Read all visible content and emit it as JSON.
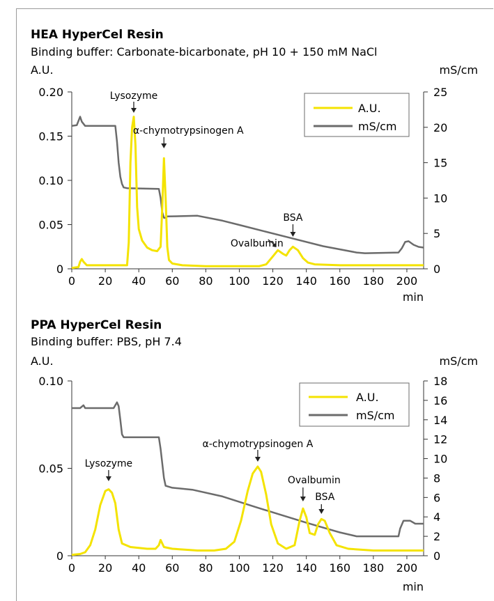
{
  "chart_data": [
    {
      "type": "line",
      "title": "HEA HyperCel Resin",
      "subtitle": "Binding buffer: Carbonate-bicarbonate, pH 10 + 150 mM NaCl",
      "xlabel": "min",
      "ylabel_left": "A.U.",
      "ylabel_right": "mS/cm",
      "xlim": [
        0,
        210
      ],
      "ylim_left": [
        0,
        0.2
      ],
      "ylim_right": [
        0,
        25
      ],
      "x_ticks": [
        "0",
        "20",
        "40",
        "60",
        "80",
        "100",
        "120",
        "140",
        "160",
        "180",
        "200"
      ],
      "y_left_ticks": [
        "0",
        "0.05",
        "0.10",
        "0.15",
        "0.20"
      ],
      "y_right_ticks": [
        "0",
        "5",
        "10",
        "15",
        "20",
        "25"
      ],
      "legend_position": "top-right",
      "series": [
        {
          "name": "A.U.",
          "axis": "left",
          "color": "#f4e300",
          "points": [
            [
              0,
              0.001
            ],
            [
              4,
              0.002
            ],
            [
              5,
              0.008
            ],
            [
              6,
              0.011
            ],
            [
              7,
              0.008
            ],
            [
              9,
              0.004
            ],
            [
              14,
              0.004
            ],
            [
              22,
              0.004
            ],
            [
              30,
              0.004
            ],
            [
              33,
              0.004
            ],
            [
              34,
              0.03
            ],
            [
              35,
              0.12
            ],
            [
              36,
              0.16
            ],
            [
              37,
              0.172
            ],
            [
              38,
              0.14
            ],
            [
              39,
              0.07
            ],
            [
              40,
              0.045
            ],
            [
              42,
              0.032
            ],
            [
              45,
              0.024
            ],
            [
              48,
              0.021
            ],
            [
              51,
              0.02
            ],
            [
              53,
              0.025
            ],
            [
              54,
              0.07
            ],
            [
              55,
              0.125
            ],
            [
              56,
              0.08
            ],
            [
              57,
              0.025
            ],
            [
              58,
              0.01
            ],
            [
              60,
              0.006
            ],
            [
              66,
              0.004
            ],
            [
              80,
              0.003
            ],
            [
              100,
              0.003
            ],
            [
              112,
              0.003
            ],
            [
              116,
              0.005
            ],
            [
              120,
              0.014
            ],
            [
              123,
              0.021
            ],
            [
              126,
              0.017
            ],
            [
              128,
              0.015
            ],
            [
              130,
              0.021
            ],
            [
              132,
              0.025
            ],
            [
              135,
              0.021
            ],
            [
              138,
              0.012
            ],
            [
              141,
              0.007
            ],
            [
              145,
              0.005
            ],
            [
              160,
              0.004
            ],
            [
              185,
              0.004
            ],
            [
              200,
              0.004
            ],
            [
              210,
              0.004
            ]
          ]
        },
        {
          "name": "mS/cm",
          "axis": "right",
          "color": "#6b6b6b",
          "points": [
            [
              0,
              20.2
            ],
            [
              3,
              20.3
            ],
            [
              5,
              21.5
            ],
            [
              6,
              20.8
            ],
            [
              8,
              20.2
            ],
            [
              18,
              20.2
            ],
            [
              26,
              20.2
            ],
            [
              27,
              18
            ],
            [
              28,
              15
            ],
            [
              29,
              13
            ],
            [
              30,
              12
            ],
            [
              31,
              11.5
            ],
            [
              33,
              11.4
            ],
            [
              52,
              11.3
            ],
            [
              53,
              10
            ],
            [
              54,
              8
            ],
            [
              55,
              7.2
            ],
            [
              56,
              7.2
            ],
            [
              57,
              7.4
            ],
            [
              75,
              7.5
            ],
            [
              90,
              6.8
            ],
            [
              100,
              6.2
            ],
            [
              115,
              5.3
            ],
            [
              130,
              4.4
            ],
            [
              150,
              3.2
            ],
            [
              170,
              2.3
            ],
            [
              175,
              2.2
            ],
            [
              195,
              2.3
            ],
            [
              197,
              2.9
            ],
            [
              199,
              3.8
            ],
            [
              201,
              3.9
            ],
            [
              204,
              3.4
            ],
            [
              207,
              3.1
            ],
            [
              210,
              3.0
            ]
          ]
        }
      ],
      "annotations": [
        {
          "text": "Lysozyme",
          "x": 37
        },
        {
          "text": "α-chymotrypsinogen A",
          "x": 55
        },
        {
          "text": "Ovalbumin",
          "x": 123
        },
        {
          "text": "BSA",
          "x": 132
        }
      ]
    },
    {
      "type": "line",
      "title": "PPA HyperCel Resin",
      "subtitle": "Binding buffer: PBS, pH 7.4",
      "xlabel": "min",
      "ylabel_left": "A.U.",
      "ylabel_right": "mS/cm",
      "xlim": [
        0,
        210
      ],
      "ylim_left": [
        0,
        0.1
      ],
      "ylim_right": [
        0,
        18
      ],
      "x_ticks": [
        "0",
        "20",
        "40",
        "60",
        "80",
        "100",
        "120",
        "140",
        "160",
        "180",
        "200"
      ],
      "y_left_ticks": [
        "0",
        "0.05",
        "0.10"
      ],
      "y_right_ticks": [
        "0",
        "2",
        "4",
        "6",
        "8",
        "10",
        "12",
        "14",
        "16",
        "18"
      ],
      "legend_position": "top-right",
      "series": [
        {
          "name": "A.U.",
          "axis": "left",
          "color": "#f4e300",
          "points": [
            [
              0,
              0.0005
            ],
            [
              5,
              0.001
            ],
            [
              8,
              0.002
            ],
            [
              11,
              0.006
            ],
            [
              14,
              0.015
            ],
            [
              17,
              0.029
            ],
            [
              20,
              0.037
            ],
            [
              22,
              0.038
            ],
            [
              24,
              0.036
            ],
            [
              26,
              0.03
            ],
            [
              28,
              0.015
            ],
            [
              30,
              0.007
            ],
            [
              35,
              0.005
            ],
            [
              45,
              0.004
            ],
            [
              50,
              0.004
            ],
            [
              52,
              0.006
            ],
            [
              53,
              0.009
            ],
            [
              55,
              0.005
            ],
            [
              60,
              0.004
            ],
            [
              75,
              0.003
            ],
            [
              85,
              0.003
            ],
            [
              92,
              0.004
            ],
            [
              97,
              0.008
            ],
            [
              101,
              0.02
            ],
            [
              105,
              0.037
            ],
            [
              108,
              0.047
            ],
            [
              111,
              0.051
            ],
            [
              113,
              0.048
            ],
            [
              116,
              0.035
            ],
            [
              119,
              0.018
            ],
            [
              123,
              0.007
            ],
            [
              128,
              0.004
            ],
            [
              133,
              0.006
            ],
            [
              136,
              0.02
            ],
            [
              138,
              0.027
            ],
            [
              140,
              0.022
            ],
            [
              142,
              0.013
            ],
            [
              145,
              0.012
            ],
            [
              147,
              0.018
            ],
            [
              149,
              0.021
            ],
            [
              151,
              0.02
            ],
            [
              154,
              0.013
            ],
            [
              158,
              0.006
            ],
            [
              165,
              0.004
            ],
            [
              180,
              0.003
            ],
            [
              200,
              0.003
            ],
            [
              210,
              0.003
            ]
          ]
        },
        {
          "name": "mS/cm",
          "axis": "right",
          "color": "#6b6b6b",
          "points": [
            [
              0,
              15.2
            ],
            [
              5,
              15.2
            ],
            [
              7,
              15.5
            ],
            [
              8,
              15.2
            ],
            [
              25,
              15.2
            ],
            [
              27,
              15.8
            ],
            [
              28,
              15.4
            ],
            [
              29,
              14
            ],
            [
              30,
              12.5
            ],
            [
              31,
              12.2
            ],
            [
              52,
              12.2
            ],
            [
              53,
              11
            ],
            [
              54,
              9.5
            ],
            [
              55,
              8
            ],
            [
              56,
              7.2
            ],
            [
              60,
              7
            ],
            [
              72,
              6.8
            ],
            [
              90,
              6.1
            ],
            [
              110,
              5
            ],
            [
              125,
              4.2
            ],
            [
              140,
              3.4
            ],
            [
              150,
              2.9
            ],
            [
              160,
              2.4
            ],
            [
              170,
              2
            ],
            [
              195,
              2
            ],
            [
              196,
              2.8
            ],
            [
              198,
              3.6
            ],
            [
              202,
              3.6
            ],
            [
              205,
              3.3
            ],
            [
              210,
              3.3
            ]
          ]
        }
      ],
      "annotations": [
        {
          "text": "Lysozyme",
          "x": 22
        },
        {
          "text": "α-chymotrypsinogen A",
          "x": 111
        },
        {
          "text": "Ovalbumin",
          "x": 138
        },
        {
          "text": "BSA",
          "x": 149
        }
      ]
    }
  ]
}
